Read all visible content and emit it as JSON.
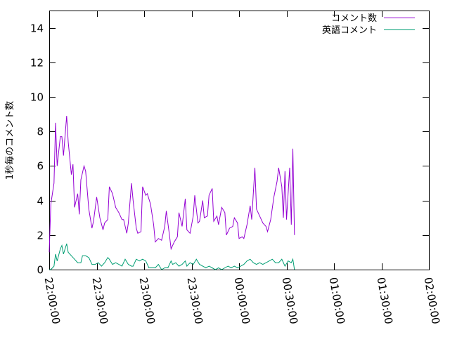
{
  "chart_data": {
    "type": "line",
    "title": "",
    "xlabel": "",
    "ylabel": "1秒毎のコメント数",
    "xlim": [
      "22:00:00",
      "02:00:00"
    ],
    "xtick_labels": [
      "22:00:00",
      "22:30:00",
      "23:00:00",
      "23:30:00",
      "00:00:00",
      "00:30:00",
      "01:00:00",
      "01:30:00",
      "02:00:00"
    ],
    "ylim": [
      0,
      15
    ],
    "ytick_values": [
      0,
      2,
      4,
      6,
      8,
      10,
      12,
      14
    ],
    "ytick_labels": [
      "0",
      "2",
      "4",
      "6",
      "8",
      "10",
      "12",
      "14"
    ],
    "grid": false,
    "legend_position": "top-right",
    "series": [
      {
        "name": "コメント数",
        "color": "#9400d3",
        "points": [
          [
            "22:00",
            1.0
          ],
          [
            "22:01",
            3.8
          ],
          [
            "22:03",
            5.0
          ],
          [
            "22:04",
            8.5
          ],
          [
            "22:05",
            6.0
          ],
          [
            "22:07",
            7.7
          ],
          [
            "22:08",
            7.7
          ],
          [
            "22:09",
            6.6
          ],
          [
            "22:11",
            8.9
          ],
          [
            "22:12",
            7.4
          ],
          [
            "22:14",
            5.5
          ],
          [
            "22:15",
            6.1
          ],
          [
            "22:16",
            3.6
          ],
          [
            "22:18",
            4.4
          ],
          [
            "22:19",
            3.2
          ],
          [
            "22:20",
            5.2
          ],
          [
            "22:22",
            6.0
          ],
          [
            "22:23",
            5.7
          ],
          [
            "22:25",
            3.5
          ],
          [
            "22:27",
            2.4
          ],
          [
            "22:28",
            2.8
          ],
          [
            "22:30",
            4.2
          ],
          [
            "22:32",
            3.0
          ],
          [
            "22:34",
            2.3
          ],
          [
            "22:35",
            2.7
          ],
          [
            "22:37",
            2.9
          ],
          [
            "22:38",
            4.8
          ],
          [
            "22:40",
            4.4
          ],
          [
            "22:42",
            3.6
          ],
          [
            "22:44",
            3.3
          ],
          [
            "22:46",
            2.9
          ],
          [
            "22:47",
            2.9
          ],
          [
            "22:49",
            2.1
          ],
          [
            "22:50",
            2.7
          ],
          [
            "22:52",
            5.0
          ],
          [
            "22:53",
            4.0
          ],
          [
            "22:55",
            2.4
          ],
          [
            "22:56",
            2.1
          ],
          [
            "22:58",
            2.2
          ],
          [
            "22:59",
            4.8
          ],
          [
            "23:01",
            4.3
          ],
          [
            "23:02",
            4.4
          ],
          [
            "23:04",
            3.8
          ],
          [
            "23:06",
            2.6
          ],
          [
            "23:07",
            1.6
          ],
          [
            "23:09",
            1.8
          ],
          [
            "23:11",
            1.7
          ],
          [
            "23:13",
            2.5
          ],
          [
            "23:14",
            3.4
          ],
          [
            "23:16",
            2.0
          ],
          [
            "23:17",
            1.2
          ],
          [
            "23:19",
            1.6
          ],
          [
            "23:21",
            1.9
          ],
          [
            "23:22",
            3.3
          ],
          [
            "23:24",
            2.5
          ],
          [
            "23:26",
            4.1
          ],
          [
            "23:27",
            2.3
          ],
          [
            "23:29",
            2.1
          ],
          [
            "23:31",
            3.1
          ],
          [
            "23:32",
            4.3
          ],
          [
            "23:34",
            2.7
          ],
          [
            "23:35",
            2.8
          ],
          [
            "23:37",
            4.0
          ],
          [
            "23:38",
            3.0
          ],
          [
            "23:40",
            3.1
          ],
          [
            "23:41",
            4.3
          ],
          [
            "23:43",
            4.7
          ],
          [
            "23:44",
            2.8
          ],
          [
            "23:46",
            3.1
          ],
          [
            "23:47",
            2.6
          ],
          [
            "23:49",
            3.6
          ],
          [
            "23:51",
            3.3
          ],
          [
            "23:52",
            2.0
          ],
          [
            "23:54",
            2.4
          ],
          [
            "23:56",
            2.5
          ],
          [
            "23:57",
            3.0
          ],
          [
            "23:59",
            2.7
          ],
          [
            "00:00",
            1.8
          ],
          [
            "00:02",
            1.9
          ],
          [
            "00:03",
            1.8
          ],
          [
            "00:05",
            2.6
          ],
          [
            "00:07",
            3.7
          ],
          [
            "00:08",
            2.9
          ],
          [
            "00:10",
            5.9
          ],
          [
            "00:11",
            3.5
          ],
          [
            "00:13",
            3.1
          ],
          [
            "00:15",
            2.7
          ],
          [
            "00:17",
            2.5
          ],
          [
            "00:18",
            2.2
          ],
          [
            "00:20",
            2.9
          ],
          [
            "00:22",
            4.2
          ],
          [
            "00:24",
            5.1
          ],
          [
            "00:25",
            5.9
          ],
          [
            "00:27",
            4.8
          ],
          [
            "00:28",
            3.0
          ],
          [
            "00:29",
            5.7
          ],
          [
            "00:30",
            2.9
          ],
          [
            "00:32",
            5.9
          ],
          [
            "00:33",
            2.6
          ],
          [
            "00:34",
            7.0
          ],
          [
            "00:35",
            2.0
          ]
        ]
      },
      {
        "name": "英語コメント",
        "color": "#009e73",
        "points": [
          [
            "22:00",
            0.0
          ],
          [
            "22:01",
            0.0
          ],
          [
            "22:03",
            0.2
          ],
          [
            "22:04",
            0.9
          ],
          [
            "22:05",
            0.5
          ],
          [
            "22:07",
            1.2
          ],
          [
            "22:08",
            1.4
          ],
          [
            "22:09",
            0.9
          ],
          [
            "22:11",
            1.5
          ],
          [
            "22:12",
            1.0
          ],
          [
            "22:14",
            0.8
          ],
          [
            "22:16",
            0.6
          ],
          [
            "22:18",
            0.4
          ],
          [
            "22:20",
            0.4
          ],
          [
            "22:21",
            0.8
          ],
          [
            "22:23",
            0.8
          ],
          [
            "22:25",
            0.7
          ],
          [
            "22:27",
            0.3
          ],
          [
            "22:29",
            0.3
          ],
          [
            "22:31",
            0.4
          ],
          [
            "22:33",
            0.2
          ],
          [
            "22:35",
            0.4
          ],
          [
            "22:37",
            0.7
          ],
          [
            "22:38",
            0.6
          ],
          [
            "22:40",
            0.3
          ],
          [
            "22:42",
            0.4
          ],
          [
            "22:44",
            0.3
          ],
          [
            "22:46",
            0.2
          ],
          [
            "22:48",
            0.6
          ],
          [
            "22:50",
            0.3
          ],
          [
            "22:52",
            0.2
          ],
          [
            "22:53",
            0.2
          ],
          [
            "22:55",
            0.6
          ],
          [
            "22:57",
            0.5
          ],
          [
            "22:59",
            0.6
          ],
          [
            "23:01",
            0.5
          ],
          [
            "23:03",
            0.1
          ],
          [
            "23:05",
            0.1
          ],
          [
            "23:07",
            0.1
          ],
          [
            "23:09",
            0.3
          ],
          [
            "23:11",
            0.0
          ],
          [
            "23:13",
            0.1
          ],
          [
            "23:15",
            0.1
          ],
          [
            "23:17",
            0.5
          ],
          [
            "23:18",
            0.3
          ],
          [
            "23:20",
            0.4
          ],
          [
            "23:22",
            0.2
          ],
          [
            "23:24",
            0.3
          ],
          [
            "23:26",
            0.5
          ],
          [
            "23:27",
            0.2
          ],
          [
            "23:29",
            0.4
          ],
          [
            "23:31",
            0.3
          ],
          [
            "23:33",
            0.6
          ],
          [
            "23:35",
            0.3
          ],
          [
            "23:37",
            0.2
          ],
          [
            "23:39",
            0.1
          ],
          [
            "23:41",
            0.2
          ],
          [
            "23:43",
            0.1
          ],
          [
            "23:45",
            0.0
          ],
          [
            "23:47",
            0.1
          ],
          [
            "23:49",
            0.0
          ],
          [
            "23:51",
            0.1
          ],
          [
            "23:53",
            0.2
          ],
          [
            "23:55",
            0.1
          ],
          [
            "23:57",
            0.2
          ],
          [
            "23:59",
            0.1
          ],
          [
            "00:01",
            0.2
          ],
          [
            "00:03",
            0.3
          ],
          [
            "00:05",
            0.5
          ],
          [
            "00:07",
            0.6
          ],
          [
            "00:09",
            0.4
          ],
          [
            "00:11",
            0.3
          ],
          [
            "00:13",
            0.4
          ],
          [
            "00:15",
            0.3
          ],
          [
            "00:17",
            0.4
          ],
          [
            "00:19",
            0.5
          ],
          [
            "00:21",
            0.6
          ],
          [
            "00:23",
            0.4
          ],
          [
            "00:25",
            0.4
          ],
          [
            "00:27",
            0.6
          ],
          [
            "00:29",
            0.2
          ],
          [
            "00:31",
            0.5
          ],
          [
            "00:33",
            0.4
          ],
          [
            "00:34",
            0.6
          ],
          [
            "00:35",
            0.0
          ]
        ]
      }
    ]
  }
}
